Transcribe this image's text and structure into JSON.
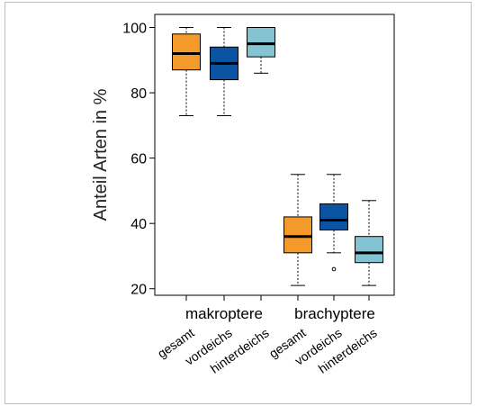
{
  "chart_data": {
    "type": "boxplot",
    "ylabel": "Anteil Arten in %",
    "ylim": [
      18,
      104
    ],
    "yticks": [
      20,
      40,
      60,
      80,
      100
    ],
    "grid": false,
    "groups": [
      "makroptere",
      "brachyptere"
    ],
    "categories": [
      "gesamt",
      "vordeichs",
      "hinterdeichs",
      "gesamt",
      "vordeichs",
      "hinterdeichs"
    ],
    "boxes": [
      {
        "group": "makroptere",
        "category": "gesamt",
        "color": "#f39a2a",
        "min": 73,
        "q1": 87,
        "median": 92,
        "q3": 98,
        "max": 100,
        "outliers": []
      },
      {
        "group": "makroptere",
        "category": "vordeichs",
        "color": "#0b54a3",
        "min": 73,
        "q1": 84,
        "median": 89,
        "q3": 94,
        "max": 100,
        "outliers": []
      },
      {
        "group": "makroptere",
        "category": "hinterdeichs",
        "color": "#84c3d1",
        "min": 86,
        "q1": 91,
        "median": 95,
        "q3": 100,
        "max": 100,
        "outliers": []
      },
      {
        "group": "brachyptere",
        "category": "gesamt",
        "color": "#f39a2a",
        "min": 21,
        "q1": 31,
        "median": 36,
        "q3": 42,
        "max": 55,
        "outliers": []
      },
      {
        "group": "brachyptere",
        "category": "vordeichs",
        "color": "#0b54a3",
        "min": 31,
        "q1": 38,
        "median": 41,
        "q3": 46,
        "max": 55,
        "outliers": [
          26
        ]
      },
      {
        "group": "brachyptere",
        "category": "hinterdeichs",
        "color": "#84c3d1",
        "min": 21,
        "q1": 28,
        "median": 31,
        "q3": 36,
        "max": 47,
        "outliers": []
      }
    ]
  }
}
